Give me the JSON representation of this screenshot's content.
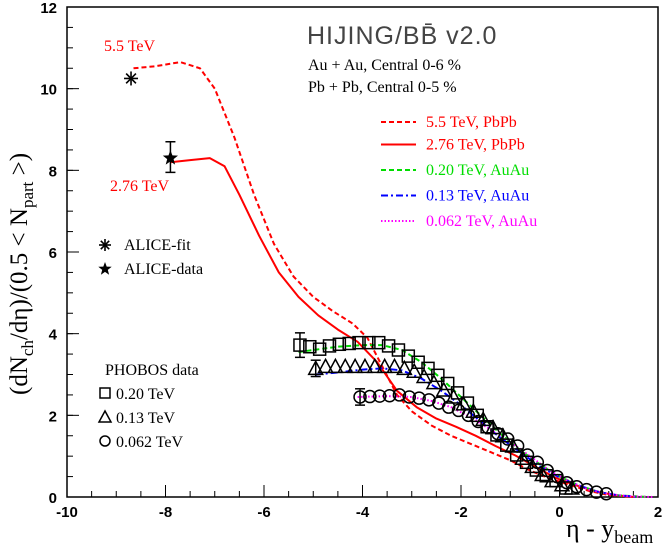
{
  "chart_data": {
    "type": "line",
    "xlabel": "η - y",
    "xlabel_sub": "beam",
    "ylabel_parts": [
      "(dN",
      "ch",
      "/dη)/(0.5 < N",
      "part",
      " >)"
    ],
    "xlim": [
      -10,
      2
    ],
    "ylim": [
      0,
      12
    ],
    "x_ticks": [
      -10,
      -8,
      -6,
      -4,
      -2,
      0,
      2
    ],
    "y_ticks": [
      0,
      2,
      4,
      6,
      8,
      10,
      12
    ],
    "grid": false,
    "header": {
      "title": "HIJING/BB̄ v2.0",
      "line1": "Au + Au, Central 0-6 %",
      "line2": "Pb + Pb, Central 0-5 %"
    },
    "annotations": [
      {
        "text": "5.5 TeV",
        "color": "#ff0000"
      },
      {
        "text": "2.76 TeV",
        "color": "#ff0000"
      }
    ],
    "series": [
      {
        "name": "5.5 TeV, PbPb",
        "color": "#ff0000",
        "style": "dashed",
        "x": [
          -8.65,
          -8.2,
          -7.7,
          -7.3,
          -7.0,
          -6.6,
          -6.2,
          -5.8,
          -5.4,
          -5.0,
          -4.6,
          -4.2,
          -3.9,
          -3.6,
          -3.3,
          -3.0,
          -2.6,
          -2.2,
          -1.8,
          -1.4,
          -1.0,
          -0.6,
          -0.2,
          0.2,
          0.6,
          1.0,
          1.5
        ],
        "y": [
          10.5,
          10.55,
          10.65,
          10.5,
          10.0,
          8.8,
          7.4,
          6.2,
          5.4,
          4.9,
          4.55,
          4.25,
          3.9,
          3.2,
          2.5,
          2.1,
          1.75,
          1.5,
          1.3,
          1.1,
          0.9,
          0.65,
          0.45,
          0.3,
          0.15,
          0.05,
          0.0
        ]
      },
      {
        "name": "2.76 TeV, PbPb",
        "color": "#ff0000",
        "style": "solid",
        "x": [
          -7.9,
          -7.5,
          -7.1,
          -6.8,
          -6.5,
          -6.1,
          -5.7,
          -5.3,
          -4.9,
          -4.5,
          -4.1,
          -3.7,
          -3.3,
          -2.9,
          -2.5,
          -2.1,
          -1.7,
          -1.3,
          -0.9,
          -0.5,
          -0.1,
          0.3,
          0.7,
          1.1,
          1.5
        ],
        "y": [
          8.2,
          8.25,
          8.3,
          8.1,
          7.4,
          6.4,
          5.5,
          4.9,
          4.45,
          4.1,
          3.8,
          3.3,
          2.6,
          2.2,
          1.92,
          1.72,
          1.5,
          1.25,
          1.02,
          0.75,
          0.48,
          0.3,
          0.15,
          0.05,
          0.0
        ]
      },
      {
        "name": "0.20 TeV, AuAu",
        "color": "#00dd00",
        "style": "dashed",
        "x": [
          -5.3,
          -5.0,
          -4.5,
          -4.0,
          -3.6,
          -3.2,
          -2.8,
          -2.4,
          -2.0,
          -1.6,
          -1.2,
          -0.8,
          -0.4,
          0.0,
          0.4,
          0.8,
          1.2,
          1.8
        ],
        "y": [
          3.55,
          3.6,
          3.68,
          3.72,
          3.72,
          3.6,
          3.3,
          2.9,
          2.45,
          2.0,
          1.55,
          1.15,
          0.8,
          0.5,
          0.28,
          0.12,
          0.04,
          0.0
        ]
      },
      {
        "name": "0.13 TeV, AuAu",
        "color": "#0000ff",
        "style": "dashdot",
        "x": [
          -4.95,
          -4.5,
          -4.0,
          -3.6,
          -3.2,
          -2.8,
          -2.4,
          -2.0,
          -1.6,
          -1.2,
          -0.8,
          -0.4,
          0.0,
          0.4,
          0.8,
          1.2,
          1.6
        ],
        "y": [
          3.0,
          3.05,
          3.12,
          3.15,
          3.1,
          2.9,
          2.6,
          2.25,
          1.85,
          1.45,
          1.1,
          0.75,
          0.48,
          0.28,
          0.12,
          0.04,
          0.0
        ]
      },
      {
        "name": "0.062 TeV, AuAu",
        "color": "#ff00ff",
        "style": "dotted",
        "x": [
          -4.1,
          -3.5,
          -3.0,
          -2.6,
          -2.2,
          -1.8,
          -1.4,
          -1.0,
          -0.6,
          -0.2,
          0.2,
          0.6,
          1.0,
          1.4,
          1.9
        ],
        "y": [
          2.45,
          2.47,
          2.45,
          2.35,
          2.2,
          1.95,
          1.65,
          1.35,
          1.0,
          0.65,
          0.38,
          0.18,
          0.07,
          0.02,
          0.0
        ]
      }
    ],
    "markers": {
      "legend_title": "PHOBOS data",
      "sets": [
        {
          "name": "0.20 TeV",
          "symbol": "square",
          "x": [
            -5.27,
            -5.07,
            -4.87,
            -4.67,
            -4.47,
            -4.27,
            -4.07,
            -3.87,
            -3.67,
            -3.47,
            -3.27,
            -3.07,
            -2.87,
            -2.67,
            -2.47,
            -2.27,
            -2.07,
            -1.87,
            -1.67,
            -1.47,
            -1.27,
            -1.07,
            -0.87,
            -0.67,
            -0.47,
            -0.27,
            -0.07,
            0.13
          ],
          "y": [
            3.72,
            3.68,
            3.62,
            3.7,
            3.74,
            3.76,
            3.78,
            3.78,
            3.78,
            3.7,
            3.6,
            3.45,
            3.3,
            3.15,
            2.98,
            2.78,
            2.55,
            2.3,
            2.0,
            1.72,
            1.52,
            1.27,
            1.03,
            0.85,
            0.66,
            0.52,
            0.4,
            0.22
          ],
          "error_first": 0.3
        },
        {
          "name": "0.13 TeV",
          "symbol": "triangle",
          "x": [
            -4.95,
            -4.75,
            -4.55,
            -4.35,
            -4.15,
            -3.95,
            -3.75,
            -3.55,
            -3.35,
            -3.15,
            -2.95,
            -2.75,
            -2.55,
            -2.35,
            -2.15,
            -1.95,
            -1.75,
            -1.55,
            -1.35,
            -1.15,
            -0.95,
            -0.75,
            -0.55,
            -0.35,
            -0.15,
            0.05,
            0.25
          ],
          "y": [
            3.15,
            3.2,
            3.2,
            3.2,
            3.2,
            3.2,
            3.2,
            3.2,
            3.2,
            3.15,
            3.08,
            2.95,
            2.8,
            2.62,
            2.45,
            2.28,
            2.1,
            1.9,
            1.7,
            1.5,
            1.25,
            0.95,
            0.75,
            0.55,
            0.4,
            0.3,
            0.22
          ],
          "error_first": 0.2
        },
        {
          "name": "0.062 TeV",
          "symbol": "circle",
          "x": [
            -4.05,
            -3.85,
            -3.65,
            -3.45,
            -3.25,
            -3.05,
            -2.85,
            -2.65,
            -2.45,
            -2.25,
            -2.05,
            -1.85,
            -1.65,
            -1.45,
            -1.25,
            -1.05,
            -0.85,
            -0.65,
            -0.45,
            -0.25,
            -0.05,
            0.15,
            0.35,
            0.55,
            0.75,
            0.95
          ],
          "y": [
            2.45,
            2.46,
            2.47,
            2.48,
            2.5,
            2.45,
            2.42,
            2.38,
            2.3,
            2.2,
            2.12,
            2.0,
            1.85,
            1.7,
            1.55,
            1.42,
            1.25,
            1.03,
            0.85,
            0.65,
            0.5,
            0.35,
            0.25,
            0.18,
            0.12,
            0.08
          ],
          "error_first": 0.2
        }
      ],
      "alice": [
        {
          "name": "ALICE-fit",
          "symbol": "asterisk",
          "x": -8.7,
          "y": 10.25
        },
        {
          "name": "ALICE-data",
          "symbol": "star",
          "x": -7.9,
          "y": 8.3,
          "err_low": 7.95,
          "err_high": 8.7
        }
      ]
    }
  }
}
